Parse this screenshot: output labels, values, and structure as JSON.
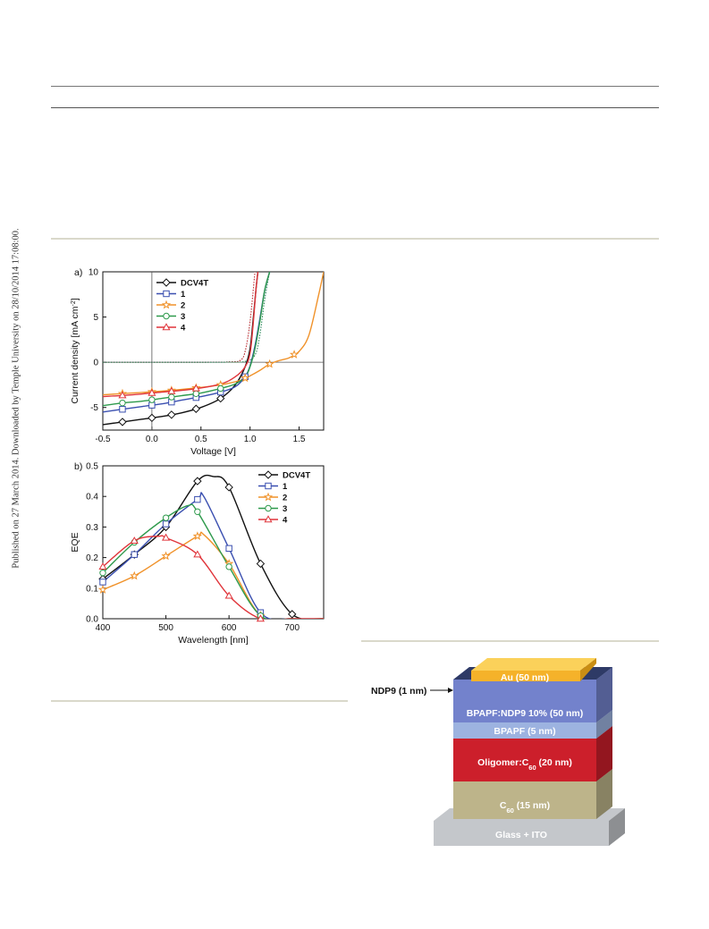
{
  "side_note": "Published on 27 March 2014. Downloaded by Temple University on 28/10/2014 17:08:00.",
  "colors": {
    "DCV4T": "#111111",
    "1": "#3a4fb0",
    "2": "#f0922a",
    "3": "#2e9a4c",
    "4": "#e0343a"
  },
  "chart_data": [
    {
      "type": "line",
      "panel_label": "a)",
      "xlabel": "Voltage [V]",
      "ylabel": "Current density [mA cm",
      "ylabel_sup": "-2",
      "ylabel_close": "]",
      "xlim": [
        -0.5,
        1.75
      ],
      "ylim": [
        -7.5,
        10
      ],
      "xticks": [
        "-0.5",
        "0.0",
        "0.5",
        "1.0",
        "1.5"
      ],
      "yticks": [
        "-5",
        "0",
        "5",
        "10"
      ],
      "legend_position": "top-left",
      "series": [
        {
          "name": "DCV4T",
          "key": "DCV4T",
          "marker": "diamond",
          "x": [
            -0.5,
            -0.3,
            -0.1,
            0.1,
            0.3,
            0.5,
            0.7,
            0.85,
            0.95,
            1.0,
            1.03,
            1.06,
            1.08
          ],
          "y": [
            -6.9,
            -6.6,
            -6.3,
            -6.0,
            -5.6,
            -5.0,
            -4.0,
            -2.5,
            -0.5,
            1.5,
            4.5,
            8.0,
            10
          ],
          "marker_x": [
            -0.3,
            0.0,
            0.2,
            0.45,
            0.7
          ]
        },
        {
          "name": "1",
          "key": "1",
          "marker": "square",
          "x": [
            -0.5,
            -0.3,
            -0.1,
            0.1,
            0.3,
            0.5,
            0.7,
            0.85,
            0.95,
            1.0,
            1.05,
            1.1,
            1.15,
            1.2
          ],
          "y": [
            -5.5,
            -5.2,
            -4.9,
            -4.6,
            -4.2,
            -3.8,
            -3.3,
            -2.7,
            -1.6,
            -0.4,
            1.8,
            4.8,
            8.0,
            10
          ],
          "marker_x": [
            -0.3,
            0.0,
            0.2,
            0.45,
            0.7,
            0.95
          ]
        },
        {
          "name": "2",
          "key": "2",
          "marker": "star",
          "x": [
            -0.5,
            -0.2,
            0.1,
            0.4,
            0.7,
            0.9,
            1.0,
            1.1,
            1.2,
            1.3,
            1.4,
            1.5,
            1.6,
            1.7,
            1.75
          ],
          "y": [
            -3.6,
            -3.4,
            -3.2,
            -2.9,
            -2.5,
            -2.0,
            -1.5,
            -0.9,
            -0.2,
            0.2,
            0.5,
            1.2,
            3.0,
            7.5,
            10
          ],
          "marker_x": [
            -0.3,
            0.0,
            0.2,
            0.45,
            0.7,
            0.95,
            1.2,
            1.45
          ]
        },
        {
          "name": "3",
          "key": "3",
          "marker": "circle",
          "x": [
            -0.5,
            -0.3,
            -0.1,
            0.1,
            0.3,
            0.5,
            0.7,
            0.85,
            0.95,
            1.0,
            1.05,
            1.1,
            1.15,
            1.2
          ],
          "y": [
            -4.8,
            -4.5,
            -4.3,
            -4.0,
            -3.7,
            -3.4,
            -2.9,
            -2.4,
            -1.6,
            -0.5,
            1.5,
            4.5,
            8.0,
            10
          ],
          "marker_x": [
            -0.3,
            0.0,
            0.2,
            0.45,
            0.7
          ]
        },
        {
          "name": "4",
          "key": "4",
          "marker": "triangle",
          "x": [
            -0.5,
            -0.2,
            0.1,
            0.4,
            0.7,
            0.85,
            0.95,
            1.0,
            1.03,
            1.06,
            1.08
          ],
          "y": [
            -3.8,
            -3.6,
            -3.3,
            -3.0,
            -2.4,
            -1.6,
            -0.5,
            1.0,
            4.0,
            8.0,
            10
          ],
          "marker_x": [
            -0.3,
            0.0,
            0.2,
            0.45
          ]
        }
      ],
      "dark_curves": [
        {
          "key": "DCV4T",
          "x": [
            -0.5,
            0.5,
            0.8,
            0.9,
            0.95,
            1.0,
            1.05
          ],
          "y": [
            0,
            0,
            0.05,
            0.2,
            1.2,
            4.5,
            10
          ]
        },
        {
          "key": "4",
          "x": [
            -0.5,
            0.5,
            0.8,
            0.9,
            0.95,
            1.0,
            1.05
          ],
          "y": [
            0,
            0,
            0.05,
            0.2,
            1.2,
            4.5,
            10
          ]
        },
        {
          "key": "1",
          "x": [
            -0.5,
            0.7,
            0.95,
            1.05,
            1.1,
            1.15,
            1.2
          ],
          "y": [
            0,
            0,
            0.1,
            0.8,
            3.0,
            7.0,
            10
          ]
        },
        {
          "key": "3",
          "x": [
            -0.5,
            0.7,
            0.95,
            1.05,
            1.1,
            1.15,
            1.2
          ],
          "y": [
            0,
            0,
            0.1,
            0.8,
            3.0,
            7.0,
            10
          ]
        }
      ]
    },
    {
      "type": "line",
      "panel_label": "b)",
      "xlabel": "Wavelength [nm]",
      "ylabel": "EQE",
      "xlim": [
        400,
        750
      ],
      "ylim": [
        0,
        0.5
      ],
      "xticks": [
        "400",
        "500",
        "600",
        "700"
      ],
      "yticks": [
        "0.0",
        "0.1",
        "0.2",
        "0.3",
        "0.4",
        "0.5"
      ],
      "legend_position": "top-right",
      "series": [
        {
          "name": "DCV4T",
          "key": "DCV4T",
          "marker": "diamond",
          "x": [
            400,
            450,
            500,
            550,
            575,
            600,
            650,
            700,
            750
          ],
          "y": [
            0.13,
            0.21,
            0.3,
            0.45,
            0.465,
            0.43,
            0.18,
            0.015,
            0
          ],
          "marker_x": [
            400,
            450,
            500,
            550,
            600,
            650,
            700
          ]
        },
        {
          "name": "1",
          "key": "1",
          "marker": "square",
          "x": [
            400,
            450,
            500,
            550,
            560,
            600,
            650,
            700,
            750
          ],
          "y": [
            0.12,
            0.21,
            0.31,
            0.39,
            0.4,
            0.23,
            0.02,
            0,
            0
          ],
          "marker_x": [
            400,
            450,
            500,
            550,
            600,
            650
          ]
        },
        {
          "name": "2",
          "key": "2",
          "marker": "star",
          "x": [
            400,
            450,
            500,
            550,
            560,
            600,
            650,
            700,
            750
          ],
          "y": [
            0.095,
            0.14,
            0.205,
            0.27,
            0.275,
            0.18,
            0.01,
            0,
            0
          ],
          "marker_x": [
            400,
            450,
            500,
            550,
            600,
            650
          ]
        },
        {
          "name": "3",
          "key": "3",
          "marker": "circle",
          "x": [
            400,
            450,
            500,
            535,
            550,
            600,
            650,
            700,
            750
          ],
          "y": [
            0.15,
            0.25,
            0.33,
            0.37,
            0.35,
            0.17,
            0.01,
            0,
            0
          ],
          "marker_x": [
            400,
            450,
            500,
            550,
            600,
            650
          ]
        },
        {
          "name": "4",
          "key": "4",
          "marker": "triangle",
          "x": [
            400,
            450,
            490,
            500,
            550,
            600,
            650,
            700,
            750
          ],
          "y": [
            0.17,
            0.255,
            0.27,
            0.265,
            0.21,
            0.075,
            0,
            0,
            0
          ],
          "marker_x": [
            400,
            450,
            500,
            550,
            600,
            650
          ]
        }
      ]
    }
  ],
  "device_stack": {
    "layers": [
      {
        "key": "glass",
        "label": "Glass + ITO",
        "color": "#c4c7cb"
      },
      {
        "key": "c60",
        "label_main": "C",
        "label_sub": "60",
        "label_tail": " (15 nm)",
        "color": "#bdb48a"
      },
      {
        "key": "blend",
        "label_main": "Oligomer:C",
        "label_sub": "60",
        "label_tail": " (20 nm)",
        "color": "#cc1f2b"
      },
      {
        "key": "bpapf",
        "label": "BPAPF (5 nm)",
        "color": "#9db3e0"
      },
      {
        "key": "doped",
        "label": "BPAPF:NDP9 10% (50 nm)",
        "color": "#7382cc"
      },
      {
        "key": "au",
        "label": "Au (50 nm)",
        "color": "#f5b22a"
      }
    ],
    "ndp9_label": "NDP9 (1 nm)"
  }
}
